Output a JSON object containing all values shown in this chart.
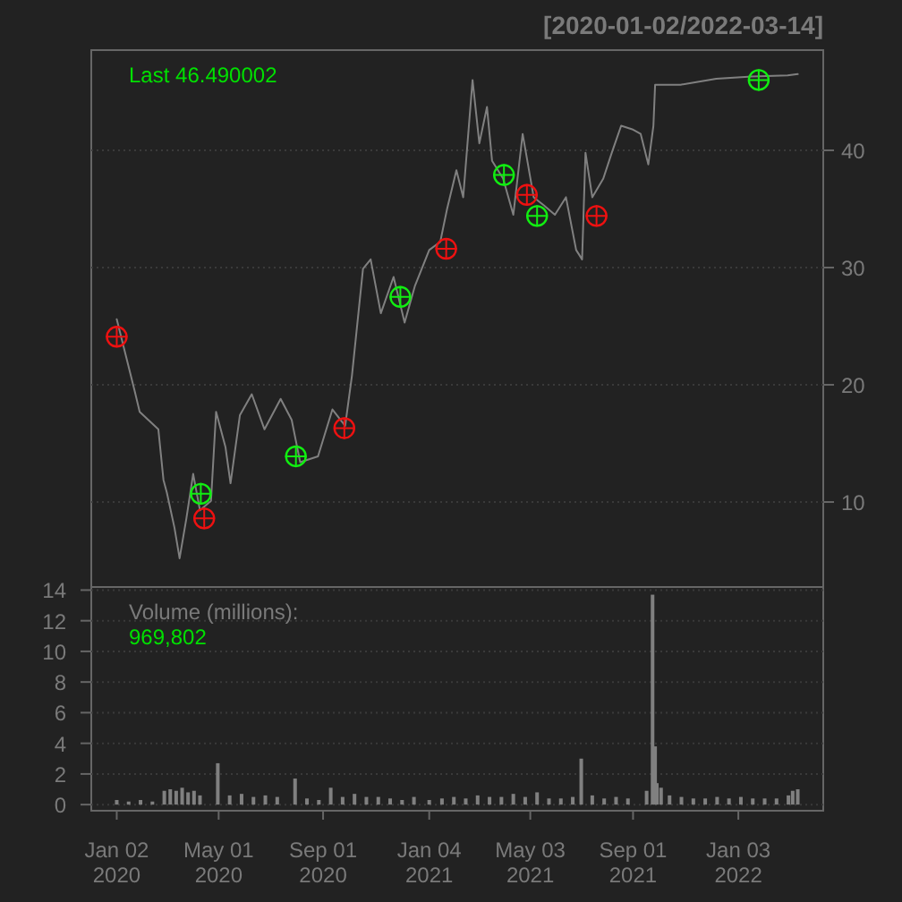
{
  "chart_data": [
    {
      "type": "line",
      "title": "[2020-01-02/2022-03-14]",
      "annotations": [
        "Last 46.490002"
      ],
      "grid": "y",
      "tick_labels": "y",
      "xlim": [
        "2019-12-03",
        "2022-04-13"
      ],
      "ylim": [
        2.75,
        48.55
      ],
      "yticks": [
        10,
        20,
        30,
        40
      ],
      "xticks": [
        {
          "value": "2020-01-02",
          "label": null
        },
        {
          "value": "2020-05-01",
          "label": null
        },
        {
          "value": "2020-09-01",
          "label": null
        },
        {
          "value": "2021-01-04",
          "label": null
        },
        {
          "value": "2021-05-03",
          "label": null
        },
        {
          "value": "2021-09-01",
          "label": null
        },
        {
          "value": "2022-01-03",
          "label": null
        }
      ],
      "series": [
        {
          "color": "#808080",
          "x": [
            "2020-01-02",
            "2020-01-23",
            "2020-01-29",
            "2020-02-20",
            "2020-02-26",
            "2020-03-01",
            "2020-03-10",
            "2020-03-16",
            "2020-03-24",
            "2020-04-01",
            "2020-04-09",
            "2020-04-22",
            "2020-04-28",
            "2020-05-09",
            "2020-05-15",
            "2020-05-26",
            "2020-06-09",
            "2020-06-24",
            "2020-07-13",
            "2020-07-26",
            "2020-08-05",
            "2020-08-26",
            "2020-09-12",
            "2020-09-27",
            "2020-10-05",
            "2020-10-18",
            "2020-10-27",
            "2020-11-08",
            "2020-11-23",
            "2020-12-06",
            "2020-12-18",
            "2021-01-04",
            "2021-01-17",
            "2021-01-25",
            "2021-02-05",
            "2021-02-13",
            "2021-02-24",
            "2021-03-04",
            "2021-03-13",
            "2021-03-19",
            "2021-04-01",
            "2021-04-13",
            "2021-04-24",
            "2021-05-07",
            "2021-05-19",
            "2021-06-01",
            "2021-06-14",
            "2021-06-26",
            "2021-07-03",
            "2021-07-07",
            "2021-07-15",
            "2021-07-28",
            "2021-08-07",
            "2021-08-18",
            "2021-08-31",
            "2021-09-10",
            "2021-09-19",
            "2021-09-25",
            "2021-09-27",
            "2021-10-27",
            "2021-12-08",
            "2022-01-19",
            "2022-03-02",
            "2022-03-14"
          ],
          "values": [
            25.6,
            19.5,
            17.7,
            16.2,
            11.9,
            10.8,
            7.8,
            5.2,
            8.6,
            12.4,
            9.3,
            10.1,
            17.7,
            14.7,
            11.6,
            17.4,
            19.2,
            16.2,
            18.8,
            17.0,
            13.4,
            13.9,
            17.9,
            16.5,
            20.8,
            29.9,
            30.7,
            26.1,
            29.2,
            25.3,
            28.4,
            31.5,
            32.2,
            35.0,
            38.3,
            36.0,
            46.0,
            40.6,
            43.7,
            39.1,
            37.6,
            34.5,
            41.4,
            36.0,
            35.3,
            34.5,
            36.0,
            31.5,
            30.7,
            39.8,
            36.0,
            37.6,
            39.8,
            42.1,
            41.8,
            41.4,
            38.8,
            42.1,
            45.6,
            45.6,
            46.1,
            46.3,
            46.4,
            46.5
          ]
        },
        {
          "type": "scatter",
          "color": "#ee1111",
          "marker": "circle",
          "x": [
            "2020-01-02",
            "2020-04-14",
            "2020-09-26",
            "2021-01-24",
            "2021-04-29",
            "2021-07-20"
          ],
          "values": [
            24.1,
            8.6,
            16.3,
            31.6,
            36.2,
            34.4
          ]
        },
        {
          "type": "scatter",
          "color": "#11ee11",
          "marker": "circle",
          "x": [
            "2020-04-10",
            "2020-07-31",
            "2020-12-01",
            "2021-04-02",
            "2021-05-11",
            "2022-01-27"
          ],
          "values": [
            10.7,
            13.9,
            27.5,
            37.9,
            34.4,
            46.0
          ]
        }
      ]
    },
    {
      "type": "bar",
      "annotations": [
        "Volume (millions):",
        "969,802"
      ],
      "grid": "y",
      "color": "#808080",
      "xlim": [
        "2019-12-03",
        "2022-04-13"
      ],
      "ylim": [
        -0.4,
        14.2
      ],
      "yticks": [
        0,
        2,
        4,
        6,
        8,
        10,
        12,
        14
      ],
      "xticks": [
        {
          "value": "2020-01-02",
          "label": "Jan 02\n2020"
        },
        {
          "value": "2020-05-01",
          "label": "May 01\n2020"
        },
        {
          "value": "2020-09-01",
          "label": "Sep 01\n2020"
        },
        {
          "value": "2021-01-04",
          "label": "Jan 04\n2021"
        },
        {
          "value": "2021-05-03",
          "label": "May 03\n2021"
        },
        {
          "value": "2021-09-01",
          "label": "Sep 01\n2021"
        },
        {
          "value": "2022-01-03",
          "label": "Jan 03\n2022"
        }
      ],
      "x": [
        "2020-01-02",
        "2020-01-16",
        "2020-01-30",
        "2020-02-13",
        "2020-02-27",
        "2020-03-05",
        "2020-03-12",
        "2020-03-19",
        "2020-03-26",
        "2020-04-02",
        "2020-04-09",
        "2020-04-30",
        "2020-05-14",
        "2020-05-28",
        "2020-06-11",
        "2020-06-25",
        "2020-07-09",
        "2020-07-30",
        "2020-08-13",
        "2020-08-27",
        "2020-09-10",
        "2020-09-24",
        "2020-10-08",
        "2020-10-22",
        "2020-11-05",
        "2020-11-19",
        "2020-12-03",
        "2020-12-17",
        "2021-01-04",
        "2021-01-19",
        "2021-02-02",
        "2021-02-16",
        "2021-03-02",
        "2021-03-16",
        "2021-03-30",
        "2021-04-13",
        "2021-04-27",
        "2021-05-11",
        "2021-05-25",
        "2021-06-08",
        "2021-06-22",
        "2021-07-02",
        "2021-07-15",
        "2021-07-29",
        "2021-08-12",
        "2021-08-26",
        "2021-09-17",
        "2021-09-24",
        "2021-09-27",
        "2021-09-29",
        "2021-10-04",
        "2021-10-14",
        "2021-10-28",
        "2021-11-11",
        "2021-11-25",
        "2021-12-09",
        "2021-12-23",
        "2022-01-06",
        "2022-01-20",
        "2022-02-03",
        "2022-02-17",
        "2022-03-03",
        "2022-03-08",
        "2022-03-14"
      ],
      "values": [
        0.3,
        0.2,
        0.3,
        0.2,
        0.9,
        1.0,
        0.9,
        1.1,
        0.8,
        0.9,
        0.6,
        2.7,
        0.6,
        0.7,
        0.5,
        0.6,
        0.5,
        1.7,
        0.4,
        0.3,
        1.1,
        0.5,
        0.7,
        0.5,
        0.5,
        0.4,
        0.3,
        0.5,
        0.3,
        0.4,
        0.5,
        0.4,
        0.6,
        0.5,
        0.5,
        0.7,
        0.5,
        0.8,
        0.4,
        0.4,
        0.5,
        3.0,
        0.6,
        0.4,
        0.5,
        0.4,
        0.9,
        13.7,
        3.8,
        1.4,
        1.1,
        0.6,
        0.5,
        0.4,
        0.4,
        0.5,
        0.4,
        0.5,
        0.4,
        0.4,
        0.4,
        0.6,
        0.9,
        1.0
      ]
    }
  ]
}
